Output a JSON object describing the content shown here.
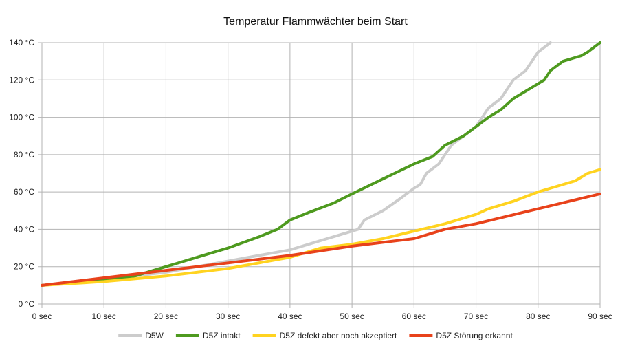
{
  "chart_data": {
    "type": "line",
    "title": "Temperatur Flammwächter beim Start",
    "xlabel": "",
    "ylabel": "",
    "xlim": [
      0,
      90
    ],
    "ylim": [
      0,
      140
    ],
    "x_ticks": [
      "0 sec",
      "10 sec",
      "20 sec",
      "30 sec",
      "40 sec",
      "50 sec",
      "60 sec",
      "70 sec",
      "80 sec",
      "90 sec"
    ],
    "y_ticks": [
      "0 °C",
      "20 °C",
      "40 °C",
      "60 °C",
      "80 °C",
      "100 °C",
      "120 °C",
      "140 °C"
    ],
    "grid": true,
    "legend_position": "bottom",
    "series": [
      {
        "name": "D5W",
        "color": "#cccccc",
        "points": [
          [
            0,
            10
          ],
          [
            10,
            13
          ],
          [
            20,
            17
          ],
          [
            30,
            23
          ],
          [
            35,
            26
          ],
          [
            40,
            29
          ],
          [
            45,
            34
          ],
          [
            50,
            39
          ],
          [
            51,
            40
          ],
          [
            52,
            45
          ],
          [
            55,
            50
          ],
          [
            58,
            57
          ],
          [
            60,
            62
          ],
          [
            61,
            64
          ],
          [
            62,
            70
          ],
          [
            64,
            75
          ],
          [
            66,
            85
          ],
          [
            68,
            90
          ],
          [
            70,
            95
          ],
          [
            71,
            100
          ],
          [
            72,
            105
          ],
          [
            74,
            110
          ],
          [
            76,
            120
          ],
          [
            78,
            125
          ],
          [
            80,
            135
          ],
          [
            82,
            140
          ]
        ]
      },
      {
        "name": "D5Z intakt",
        "color": "#4e9a1f",
        "points": [
          [
            0,
            10
          ],
          [
            10,
            13
          ],
          [
            15,
            15
          ],
          [
            18,
            18
          ],
          [
            20,
            20
          ],
          [
            25,
            25
          ],
          [
            30,
            30
          ],
          [
            35,
            36
          ],
          [
            38,
            40
          ],
          [
            40,
            45
          ],
          [
            43,
            49
          ],
          [
            47,
            54
          ],
          [
            50,
            59
          ],
          [
            55,
            67
          ],
          [
            60,
            75
          ],
          [
            63,
            79
          ],
          [
            65,
            85
          ],
          [
            68,
            90
          ],
          [
            70,
            95
          ],
          [
            72,
            100
          ],
          [
            74,
            104
          ],
          [
            76,
            110
          ],
          [
            78,
            114
          ],
          [
            80,
            118
          ],
          [
            81,
            120
          ],
          [
            82,
            125
          ],
          [
            84,
            130
          ],
          [
            87,
            133
          ],
          [
            88,
            135
          ],
          [
            90,
            140
          ]
        ]
      },
      {
        "name": "D5Z defekt aber noch akzeptiert",
        "color": "#ffd320",
        "points": [
          [
            0,
            10
          ],
          [
            10,
            12
          ],
          [
            20,
            15
          ],
          [
            30,
            19
          ],
          [
            40,
            25
          ],
          [
            45,
            30
          ],
          [
            50,
            32
          ],
          [
            55,
            35
          ],
          [
            60,
            39
          ],
          [
            65,
            43
          ],
          [
            70,
            48
          ],
          [
            72,
            51
          ],
          [
            76,
            55
          ],
          [
            80,
            60
          ],
          [
            83,
            63
          ],
          [
            86,
            66
          ],
          [
            88,
            70
          ],
          [
            90,
            72
          ]
        ]
      },
      {
        "name": "D5Z Störung erkannt",
        "color": "#e8421b",
        "points": [
          [
            0,
            10
          ],
          [
            10,
            14
          ],
          [
            20,
            18
          ],
          [
            30,
            22
          ],
          [
            40,
            26
          ],
          [
            50,
            31
          ],
          [
            55,
            33
          ],
          [
            60,
            35
          ],
          [
            65,
            40
          ],
          [
            70,
            43
          ],
          [
            75,
            47
          ],
          [
            80,
            51
          ],
          [
            85,
            55
          ],
          [
            90,
            59
          ]
        ]
      }
    ]
  }
}
